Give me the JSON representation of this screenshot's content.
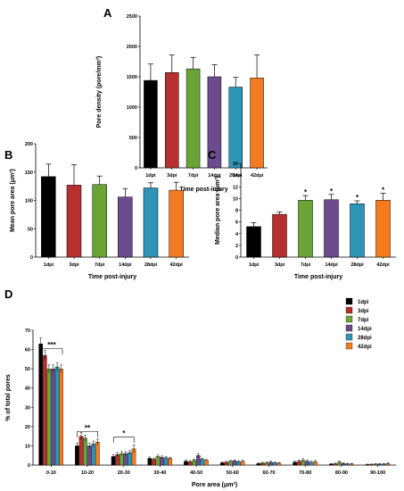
{
  "chart_data": [
    {
      "panel": "A",
      "type": "bar",
      "categories": [
        "1dpi",
        "3dpi",
        "7dpi",
        "14dpi",
        "28dpi",
        "42dpi"
      ],
      "values": [
        1440,
        1570,
        1630,
        1500,
        1330,
        1480
      ],
      "errors": [
        270,
        290,
        190,
        200,
        160,
        380
      ],
      "colors": [
        "#000000",
        "#b5302e",
        "#6aa436",
        "#6a4c8f",
        "#2f95b6",
        "#f47b20"
      ],
      "xlabel": "Time post-injury",
      "ylabel": "Pore density (pore/mm²)",
      "ylim": [
        0,
        2500
      ],
      "yticks": [
        "0",
        "500",
        "1000",
        "1500",
        "2000",
        "2500"
      ]
    },
    {
      "panel": "B",
      "type": "bar",
      "categories": [
        "1dpi",
        "3dpi",
        "7dpi",
        "14dpi",
        "28dpi",
        "42dpi"
      ],
      "values": [
        142,
        127,
        128,
        106,
        122,
        118
      ],
      "errors": [
        22,
        36,
        15,
        15,
        9,
        14
      ],
      "colors": [
        "#000000",
        "#b5302e",
        "#6aa436",
        "#6a4c8f",
        "#2f95b6",
        "#f47b20"
      ],
      "xlabel": "Time post-injury",
      "ylabel": "Mean pore area (μm²)",
      "ylim": [
        0,
        200
      ],
      "yticks": [
        "0",
        "50",
        "100",
        "150",
        "200"
      ]
    },
    {
      "panel": "C",
      "type": "bar",
      "categories": [
        "1dpi",
        "3dpi",
        "7dpi",
        "14dpi",
        "28dpi",
        "42dpi"
      ],
      "values": [
        5.2,
        7.3,
        9.7,
        9.8,
        9.1,
        9.7
      ],
      "errors": [
        0.7,
        0.4,
        0.8,
        0.9,
        0.5,
        1.2
      ],
      "significance": [
        "",
        "",
        "*",
        "*",
        "*",
        "*"
      ],
      "colors": [
        "#000000",
        "#b5302e",
        "#6aa436",
        "#6a4c8f",
        "#2f95b6",
        "#f47b20"
      ],
      "xlabel": "Time post-injury",
      "ylabel": "Median pore area (μm²)",
      "ylim": [
        0,
        16
      ],
      "yticks": [
        "0",
        "2",
        "4",
        "6",
        "8",
        "10",
        "12",
        "14",
        "16"
      ]
    },
    {
      "panel": "D",
      "type": "bar",
      "categories": [
        "0-10",
        "10-20",
        "20-30",
        "30-40",
        "40-50",
        "50-60",
        "60-70",
        "70-80",
        "80-90",
        "90-100"
      ],
      "series": [
        {
          "name": "1dpi",
          "color": "#000000",
          "values": [
            63,
            10,
            4.5,
            3.5,
            2,
            1.2,
            0.8,
            1.5,
            0.5,
            0.3
          ]
        },
        {
          "name": "3dpi",
          "color": "#b5302e",
          "values": [
            57,
            15,
            5.5,
            3.0,
            1.8,
            1.5,
            1.0,
            2.0,
            0.7,
            0.4
          ]
        },
        {
          "name": "7dpi",
          "color": "#6aa436",
          "values": [
            50,
            14,
            6,
            4.5,
            2.5,
            2.0,
            1.2,
            2.5,
            1.5,
            0.5
          ]
        },
        {
          "name": "14dpi",
          "color": "#6a4c8f",
          "values": [
            50,
            10,
            6,
            4,
            5,
            2.2,
            1.5,
            2.0,
            0.8,
            0.5
          ]
        },
        {
          "name": "28dpi",
          "color": "#2f95b6",
          "values": [
            51,
            11,
            6.5,
            3.8,
            3,
            1.8,
            1.2,
            1.5,
            0.6,
            0.5
          ]
        },
        {
          "name": "42dpi",
          "color": "#f47b20",
          "values": [
            50,
            12,
            8.5,
            3.5,
            2.5,
            2.0,
            1.0,
            1.8,
            0.6,
            0.8
          ]
        }
      ],
      "errors": [
        [
          3,
          1.5,
          1,
          0.7,
          0.5,
          0.4,
          0.3,
          0.5,
          0.3,
          0.2
        ],
        [
          2.5,
          2,
          1,
          0.6,
          0.5,
          0.4,
          0.4,
          0.6,
          0.3,
          0.2
        ],
        [
          2,
          1.5,
          1,
          0.8,
          0.6,
          0.5,
          0.4,
          0.8,
          0.6,
          0.3
        ],
        [
          2,
          1.5,
          1,
          0.7,
          1,
          0.5,
          0.5,
          0.6,
          0.4,
          0.3
        ],
        [
          2,
          1.5,
          1,
          0.6,
          0.6,
          0.5,
          0.4,
          0.5,
          0.3,
          0.3
        ],
        [
          2,
          1.5,
          2,
          0.6,
          0.5,
          0.5,
          0.3,
          0.6,
          0.3,
          0.5
        ]
      ],
      "xlabel": "Pore area (μm²)",
      "ylabel": "% of total pores",
      "ylim": [
        0,
        70
      ],
      "yticks": [
        "0",
        "10",
        "20",
        "30",
        "40",
        "50",
        "60",
        "70"
      ],
      "legend_position": "top-right",
      "annotations": [
        "***",
        "**",
        "*"
      ]
    }
  ]
}
